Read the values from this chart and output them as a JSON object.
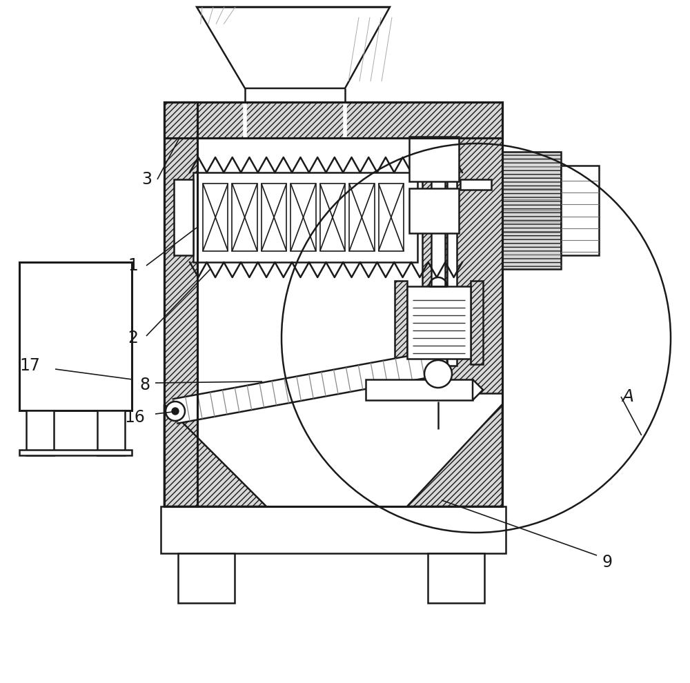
{
  "bg_color": "#ffffff",
  "line_color": "#1a1a1a",
  "fig_width": 10.0,
  "fig_height": 9.9,
  "label_fontsize": 17
}
